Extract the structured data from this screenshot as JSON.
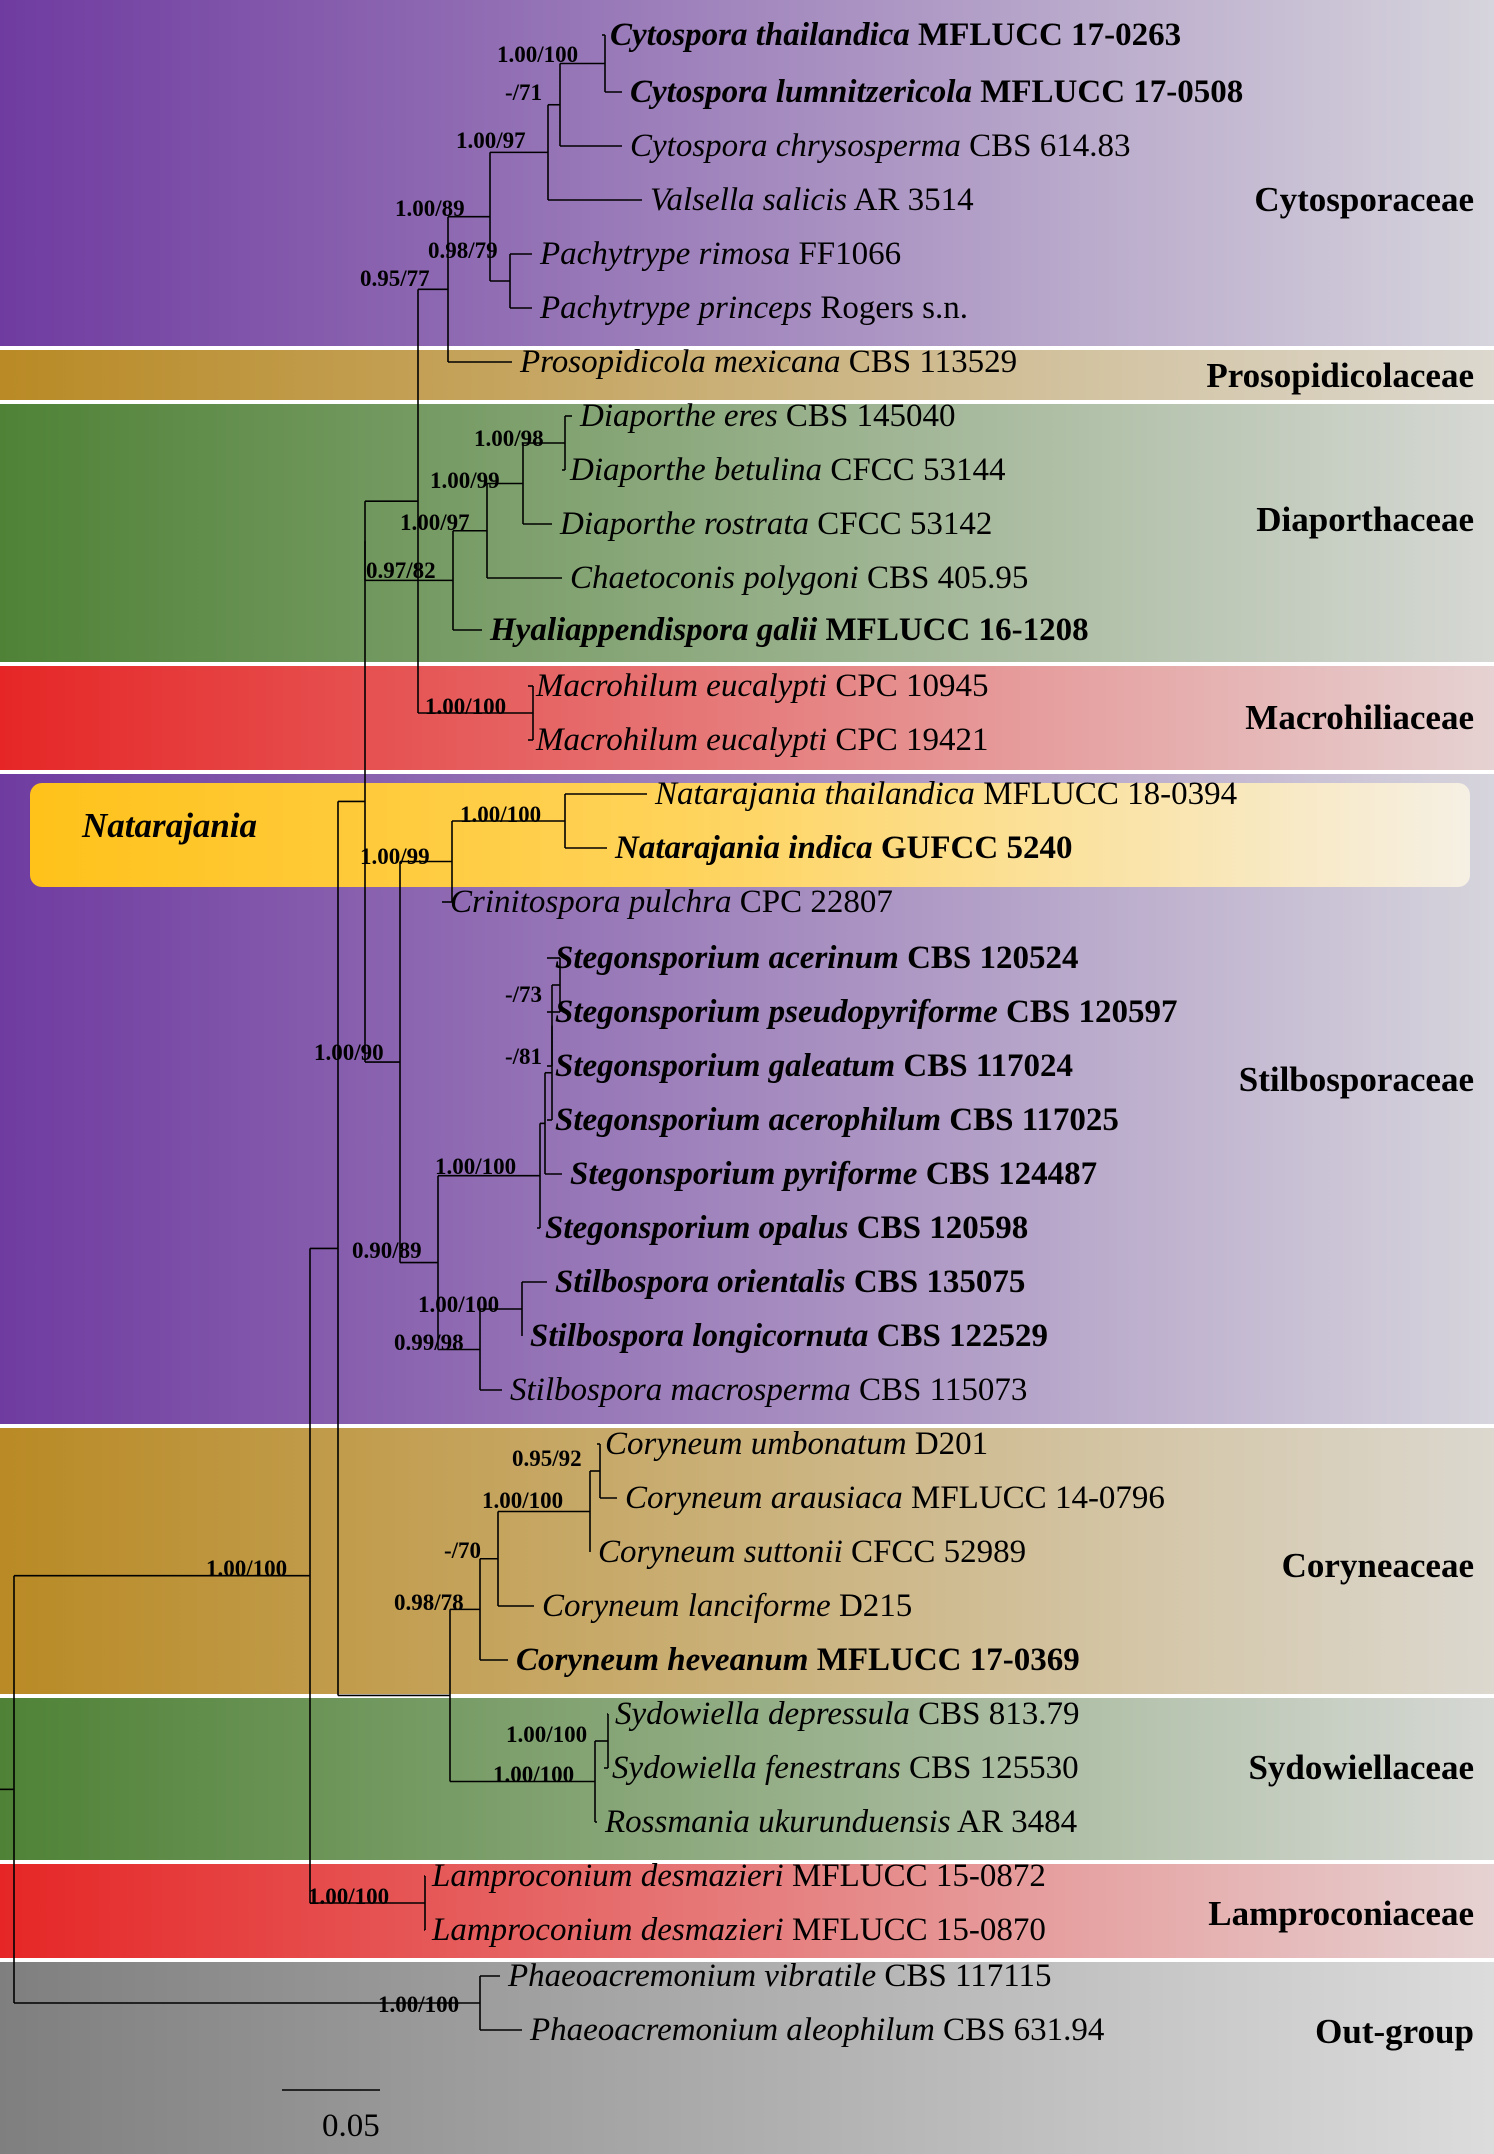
{
  "colors": {
    "purple": "#6f3ba0",
    "gold": "#b98a25",
    "green": "#4f8236",
    "red": "#e62626",
    "gray": "#7f7f7f",
    "natarajania_yellow": "#ffc21a",
    "highlight_red": "#c0272d"
  },
  "families": {
    "cytosporaceae": "Cytosporaceae",
    "prosopidicolaceae": "Prosopidicolaceae",
    "diaporthaceae": "Diaporthaceae",
    "macrohiliaceae": "Macrohiliaceae",
    "stilbosporaceae": "Stilbosporaceae",
    "coryneaceae": "Coryneaceae",
    "sydowiellaceae": "Sydowiellaceae",
    "lamproconiaceae": "Lamproconiaceae",
    "outgroup": "Out-group"
  },
  "genus_label": "Natarajania",
  "scale_bar": "0.05",
  "taxa": [
    {
      "name": "Cytospora thailandica",
      "code": "MFLUCC 17-0263",
      "bold": true
    },
    {
      "name": "Cytospora lumnitzericola",
      "code": "MFLUCC 17-0508",
      "bold": true
    },
    {
      "name": "Cytospora chrysosperma",
      "code": "CBS 614.83",
      "bold": false
    },
    {
      "name": "Valsella salicis",
      "code": "AR 3514",
      "bold": false
    },
    {
      "name": "Pachytrype rimosa",
      "code": "FF1066",
      "bold": false
    },
    {
      "name": "Pachytrype princeps",
      "code": "Rogers s.n.",
      "bold": false
    },
    {
      "name": "Prosopidicola mexicana",
      "code": "CBS 113529",
      "bold": false
    },
    {
      "name": "Diaporthe eres",
      "code": "CBS 145040",
      "bold": false
    },
    {
      "name": "Diaporthe betulina",
      "code": "CFCC 53144",
      "bold": false
    },
    {
      "name": "Diaporthe rostrata",
      "code": "CFCC 53142",
      "bold": false
    },
    {
      "name": "Chaetoconis polygoni",
      "code": "CBS 405.95",
      "bold": false
    },
    {
      "name": "Hyaliappendispora galii",
      "code": "MFLUCC 16-1208",
      "bold": true
    },
    {
      "name": "Macrohilum eucalypti",
      "code": "CPC 10945",
      "bold": false
    },
    {
      "name": "Macrohilum eucalypti",
      "code": "CPC 19421",
      "bold": false
    },
    {
      "name": "Natarajania thailandica",
      "code": "MFLUCC 18-0394",
      "bold": false,
      "highlight": true
    },
    {
      "name": "Natarajania indica",
      "code": "GUFCC 5240",
      "bold": true
    },
    {
      "name": "Crinitospora pulchra",
      "code": "CPC 22807",
      "bold": false
    },
    {
      "name": "Stegonsporium acerinum",
      "code": "CBS 120524",
      "bold": true
    },
    {
      "name": "Stegonsporium pseudopyriforme",
      "code": "CBS 120597",
      "bold": true
    },
    {
      "name": "Stegonsporium galeatum",
      "code": "CBS 117024",
      "bold": true
    },
    {
      "name": "Stegonsporium acerophilum",
      "code": "CBS 117025",
      "bold": true
    },
    {
      "name": "Stegonsporium pyriforme",
      "code": "CBS 124487",
      "bold": true
    },
    {
      "name": "Stegonsporium opalus",
      "code": "CBS 120598",
      "bold": true
    },
    {
      "name": "Stilbospora orientalis",
      "code": "CBS 135075",
      "bold": true
    },
    {
      "name": "Stilbospora longicornuta",
      "code": "CBS 122529",
      "bold": true
    },
    {
      "name": "Stilbospora macrosperma",
      "code": "CBS 115073",
      "bold": false
    },
    {
      "name": "Coryneum umbonatum",
      "code": "D201",
      "bold": false
    },
    {
      "name": "Coryneum arausiaca",
      "code": "MFLUCC 14-0796",
      "bold": false
    },
    {
      "name": "Coryneum suttonii",
      "code": "CFCC 52989",
      "bold": false
    },
    {
      "name": "Coryneum lanciforme",
      "code": "D215",
      "bold": false
    },
    {
      "name": "Coryneum heveanum",
      "code": "MFLUCC 17-0369",
      "bold": true
    },
    {
      "name": "Sydowiella depressula",
      "code": "CBS 813.79",
      "bold": false
    },
    {
      "name": "Sydowiella fenestrans",
      "code": "CBS 125530",
      "bold": false
    },
    {
      "name": "Rossmania ukurunduensis",
      "code": "AR 3484",
      "bold": false
    },
    {
      "name": "Lamproconium desmazieri",
      "code": "MFLUCC 15-0872",
      "bold": false
    },
    {
      "name": "Lamproconium desmazieri",
      "code": "MFLUCC 15-0870",
      "bold": false
    },
    {
      "name": "Phaeoacremonium vibratile",
      "code": "CBS 117115",
      "bold": false
    },
    {
      "name": "Phaeoacremonium aleophilum",
      "code": "CBS 631.94",
      "bold": false
    }
  ],
  "supports": [
    "1.00/100",
    "-/71",
    "1.00/97",
    "1.00/89",
    "0.98/79",
    "0.95/77",
    "1.00/98",
    "1.00/99",
    "1.00/97",
    "0.97/82",
    "1.00/100",
    "1.00/100",
    "1.00/99",
    "1.00/90",
    "-/73",
    "-/81",
    "1.00/100",
    "0.90/89",
    "1.00/100",
    "0.99/98",
    "0.95/92",
    "1.00/100",
    "-/70",
    "0.98/78",
    "1.00/100",
    "1.00/100",
    "1.00/100",
    "1.00/100",
    "1.00/100"
  ]
}
